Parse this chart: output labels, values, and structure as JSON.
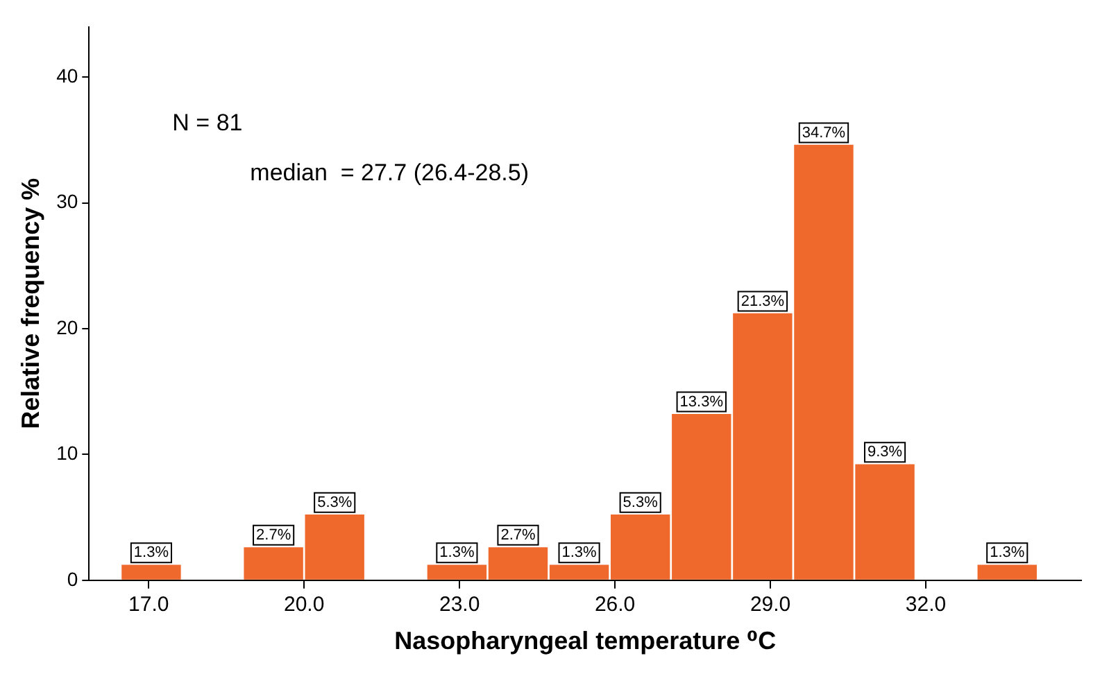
{
  "chart_data": {
    "type": "histogram",
    "xlabel": "Nasopharyngeal temperature ⁰C",
    "ylabel": "Relative frequency %",
    "bins": [
      16.46,
      17.64,
      18.82,
      20.0,
      21.18,
      22.36,
      23.54,
      24.72,
      25.9,
      27.08,
      28.26,
      29.44,
      30.62,
      31.8,
      32.98,
      34.16
    ],
    "values": [
      1.3,
      0,
      2.7,
      5.3,
      0,
      1.3,
      2.7,
      1.3,
      5.3,
      13.3,
      21.3,
      34.7,
      9.3,
      0,
      1.3
    ],
    "value_labels": [
      "1.3%",
      null,
      "2.7%",
      "5.3%",
      null,
      "1.3%",
      "2.7%",
      "1.3%",
      "5.3%",
      "13.3%",
      "21.3%",
      "34.7%",
      "9.3%",
      null,
      "1.3%"
    ],
    "color": "#f0692c",
    "xlim": [
      15.85,
      35
    ],
    "xticks": [
      {
        "value": 17,
        "label": "17.0"
      },
      {
        "value": 20,
        "label": "20.0"
      },
      {
        "value": 23,
        "label": "23.0"
      },
      {
        "value": 26,
        "label": "26.0"
      },
      {
        "value": 29,
        "label": "29.0"
      },
      {
        "value": 32,
        "label": "32.0"
      }
    ],
    "ylim": [
      0,
      44
    ],
    "yticks": [
      0,
      10,
      20,
      30,
      40
    ],
    "grid": false,
    "legend": false,
    "annotations": [
      "N = 81",
      "median  = 27.7 (26.4-28.5)"
    ]
  }
}
